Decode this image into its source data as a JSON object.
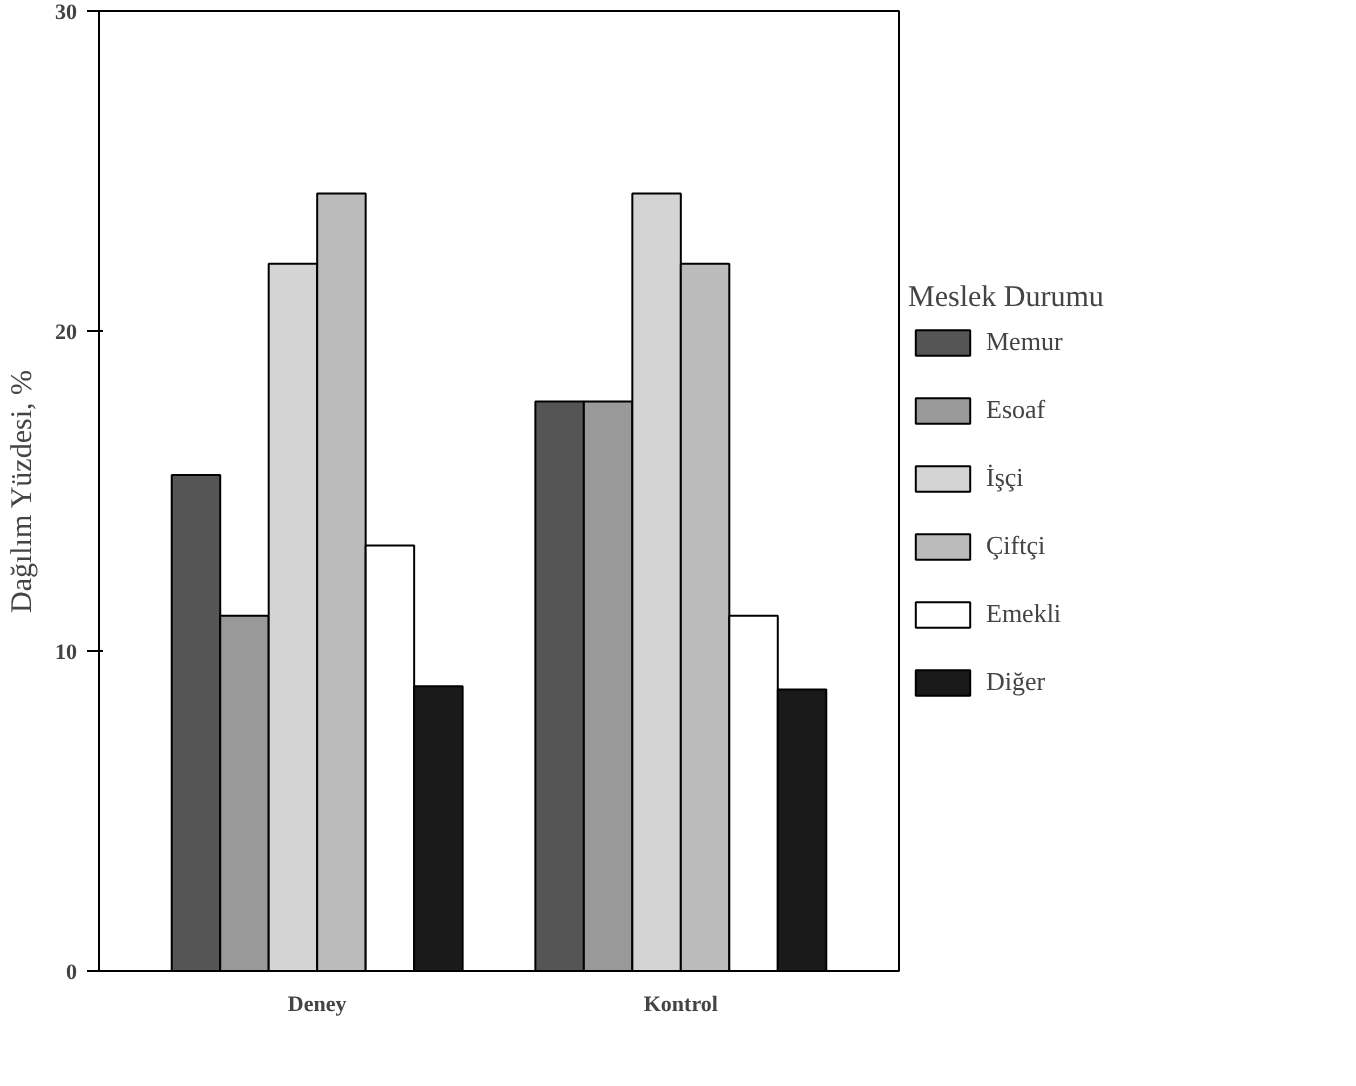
{
  "chart_data": {
    "type": "bar",
    "categories": [
      "Deney",
      "Kontrol"
    ],
    "ylabel": "Dağılım Yüzdesi, %",
    "legend_title": "Meslek Durumu",
    "ylim": [
      0,
      30
    ],
    "yticks": [
      0,
      10,
      20,
      30
    ],
    "grid": false,
    "legend": "right",
    "series": [
      {
        "name": "Memur",
        "color": "#555555",
        "values": [
          15.5,
          17.8
        ]
      },
      {
        "name": "Esoaf",
        "color": "#999999",
        "values": [
          11.1,
          17.8
        ]
      },
      {
        "name": "İşçi",
        "color": "#d4d4d4",
        "values": [
          22.1,
          24.3
        ]
      },
      {
        "name": "Çiftçi",
        "color": "#bbbbbb",
        "values": [
          24.3,
          22.1
        ]
      },
      {
        "name": "Emekli",
        "color": "#ffffff",
        "values": [
          13.3,
          11.1
        ]
      },
      {
        "name": "Diğer",
        "color": "#1a1a1a",
        "values": [
          8.9,
          8.8
        ]
      }
    ]
  }
}
